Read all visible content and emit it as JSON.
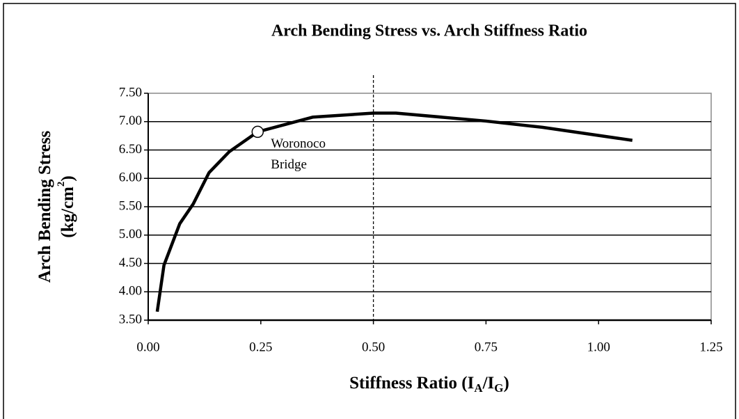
{
  "chart_data": {
    "type": "line",
    "title": "Arch Bending Stress vs. Arch Stiffness Ratio",
    "ylabel_lines": [
      [
        {
          "text": "Arch Bending Stress"
        }
      ],
      [
        {
          "text": "(kg/cm"
        },
        {
          "text": "2",
          "sup": true
        },
        {
          "text": ")"
        }
      ]
    ],
    "xlabel_parts": [
      {
        "text": "Stiffness Ratio (I"
      },
      {
        "text": "A",
        "sub": true
      },
      {
        "text": "/I"
      },
      {
        "text": "G",
        "sub": true
      },
      {
        "text": ")"
      }
    ],
    "x": [
      0.02,
      0.035,
      0.07,
      0.1,
      0.135,
      0.18,
      0.243,
      0.366,
      0.5,
      0.55,
      0.75,
      0.875,
      1.075
    ],
    "series": [
      {
        "name": "Arch Bending Stress",
        "color": "#000000",
        "values": [
          3.65,
          4.47,
          5.2,
          5.55,
          6.1,
          6.47,
          6.82,
          7.08,
          7.15,
          7.15,
          7.01,
          6.9,
          6.67
        ]
      }
    ],
    "xlim": [
      0,
      1.25
    ],
    "xticks": [
      {
        "value": 0,
        "label": "0.00"
      },
      {
        "value": 0.25,
        "label": "0.25"
      },
      {
        "value": 0.5,
        "label": "0.50"
      },
      {
        "value": 0.75,
        "label": "0.75"
      },
      {
        "value": 1,
        "label": "1.00"
      },
      {
        "value": 1.25,
        "label": "1.25"
      }
    ],
    "ylim": [
      3.5,
      7.5
    ],
    "yticks": [
      {
        "value": 3.5,
        "label": "3.50"
      },
      {
        "value": 4,
        "label": "4.00"
      },
      {
        "value": 4.5,
        "label": "4.50"
      },
      {
        "value": 5,
        "label": "5.00"
      },
      {
        "value": 5.5,
        "label": "5.50"
      },
      {
        "value": 6,
        "label": "6.00"
      },
      {
        "value": 6.5,
        "label": "6.50"
      },
      {
        "value": 7,
        "label": "7.00"
      },
      {
        "value": 7.5,
        "label": "7.50"
      }
    ],
    "grid": true,
    "vline": 0.5,
    "annotation": {
      "x": 0.243,
      "y": 6.82,
      "lines": [
        "Woronoco",
        "Bridge"
      ]
    }
  }
}
